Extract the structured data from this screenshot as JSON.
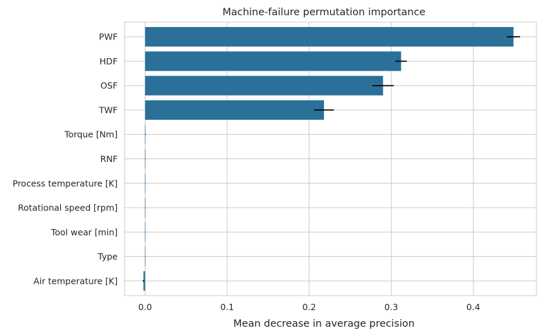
{
  "chart_data": {
    "type": "bar",
    "orientation": "horizontal",
    "title": "Machine-failure permutation importance",
    "xlabel": "Mean decrease in average precision",
    "ylabel": "",
    "categories": [
      "PWF",
      "HDF",
      "OSF",
      "TWF",
      "Torque [Nm]",
      "RNF",
      "Process temperature [K]",
      "Rotational speed [rpm]",
      "Tool wear [min]",
      "Type",
      "Air temperature [K]"
    ],
    "values": [
      0.449,
      0.312,
      0.29,
      0.218,
      0.0005,
      0.0003,
      0.0003,
      0.0003,
      0.0003,
      0.0003,
      -0.002
    ],
    "errors": [
      0.008,
      0.007,
      0.013,
      0.012,
      0.0004,
      0.0002,
      0.0002,
      0.0002,
      0.0002,
      0.0002,
      0.001
    ],
    "xlim": [
      -0.025,
      0.477
    ],
    "xticks": [
      0.0,
      0.1,
      0.2,
      0.3,
      0.4
    ],
    "xtick_labels": [
      "0.0",
      "0.1",
      "0.2",
      "0.3",
      "0.4"
    ],
    "grid": true,
    "colors": {
      "bar": "#2a7099",
      "error": "#000000",
      "grid": "#cccccc",
      "frame": "#cccccc"
    }
  }
}
